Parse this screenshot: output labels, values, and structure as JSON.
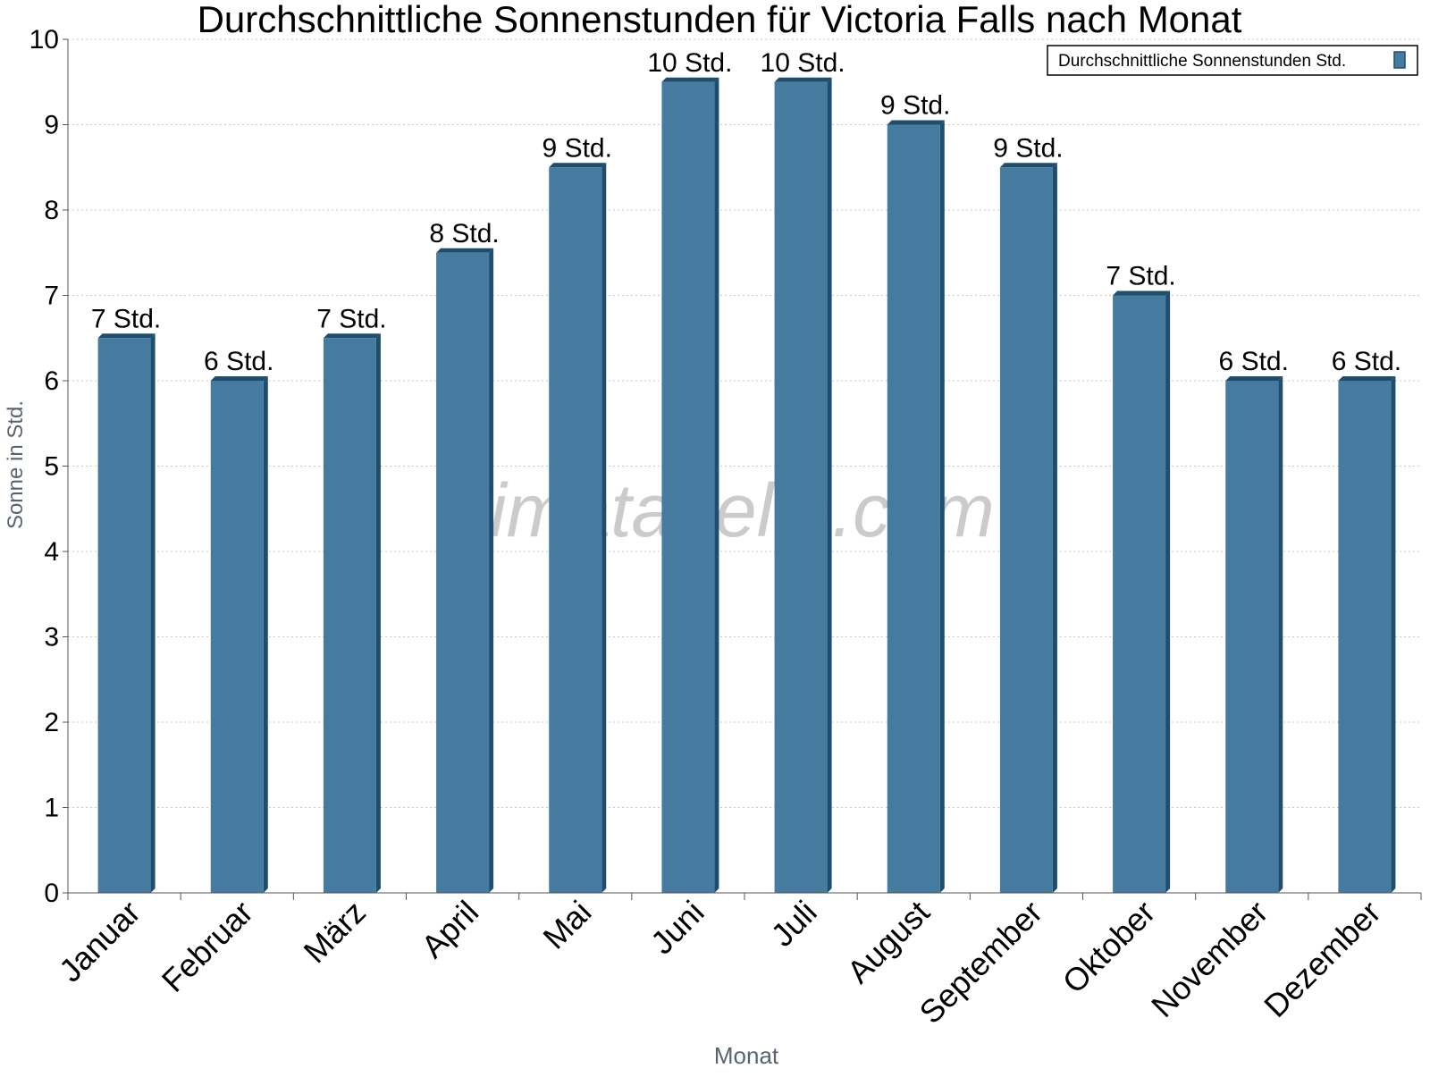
{
  "chart_data": {
    "type": "bar",
    "title": "Durchschnittliche Sonnenstunden für Victoria Falls nach Monat",
    "xlabel": "Monat",
    "ylabel": "Sonne in Std.",
    "categories": [
      "Januar",
      "Februar",
      "März",
      "April",
      "Mai",
      "Juni",
      "Juli",
      "August",
      "September",
      "Oktober",
      "November",
      "Dezember"
    ],
    "series": [
      {
        "name": "Durchschnittliche Sonnenstunden Std.",
        "values": [
          6.5,
          6.0,
          6.5,
          7.5,
          8.5,
          9.5,
          9.5,
          9.0,
          8.5,
          7.0,
          6.0,
          6.0
        ],
        "data_labels": [
          "7 Std.",
          "6 Std.",
          "7 Std.",
          "8 Std.",
          "9 Std.",
          "10 Std.",
          "10 Std.",
          "9 Std.",
          "9 Std.",
          "7 Std.",
          "6 Std.",
          "6 Std."
        ]
      }
    ],
    "ylim": [
      0,
      10
    ],
    "yticks": [
      0,
      1,
      2,
      3,
      4,
      5,
      6,
      7,
      8,
      9,
      10
    ],
    "grid": true,
    "legend": "top-right",
    "bar_color": "#467ba0",
    "bar_side_color": "#1e4d6e",
    "watermark": "klimatabelle.com"
  }
}
